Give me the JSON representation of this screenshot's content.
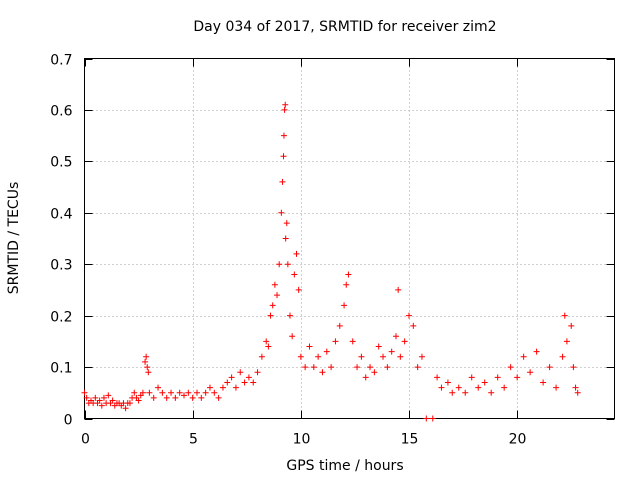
{
  "chart_data": {
    "type": "scatter",
    "title": "Day 034 of 2017, SRMTID for receiver zim2",
    "xlabel": "GPS time / hours",
    "ylabel": "SRMTID / TECUs",
    "xlim": [
      0,
      24.5
    ],
    "ylim": [
      0,
      0.7
    ],
    "xticks": [
      0,
      5,
      10,
      15,
      20
    ],
    "yticks": [
      0,
      0.1,
      0.2,
      0.3,
      0.4,
      0.5,
      0.6,
      0.7
    ],
    "ytick_labels": [
      "0",
      "0.1",
      "0.2",
      "0.3",
      "0.4",
      "0.5",
      "0.6",
      "0.7"
    ],
    "grid": true,
    "marker": "+",
    "color": "#ff0000",
    "series": [
      {
        "name": "SRMTID",
        "points": [
          [
            0.0,
            0.05
          ],
          [
            0.1,
            0.04
          ],
          [
            0.2,
            0.03
          ],
          [
            0.3,
            0.035
          ],
          [
            0.4,
            0.03
          ],
          [
            0.5,
            0.04
          ],
          [
            0.6,
            0.03
          ],
          [
            0.7,
            0.035
          ],
          [
            0.8,
            0.025
          ],
          [
            0.9,
            0.04
          ],
          [
            1.0,
            0.03
          ],
          [
            1.1,
            0.045
          ],
          [
            1.2,
            0.03
          ],
          [
            1.3,
            0.035
          ],
          [
            1.4,
            0.025
          ],
          [
            1.5,
            0.03
          ],
          [
            1.6,
            0.03
          ],
          [
            1.7,
            0.025
          ],
          [
            1.8,
            0.03
          ],
          [
            1.9,
            0.02
          ],
          [
            2.0,
            0.03
          ],
          [
            2.1,
            0.03
          ],
          [
            2.2,
            0.04
          ],
          [
            2.3,
            0.05
          ],
          [
            2.4,
            0.04
          ],
          [
            2.5,
            0.035
          ],
          [
            2.6,
            0.045
          ],
          [
            2.7,
            0.05
          ],
          [
            2.8,
            0.11
          ],
          [
            2.85,
            0.12
          ],
          [
            2.9,
            0.1
          ],
          [
            2.95,
            0.09
          ],
          [
            3.0,
            0.05
          ],
          [
            3.2,
            0.04
          ],
          [
            3.4,
            0.06
          ],
          [
            3.6,
            0.05
          ],
          [
            3.8,
            0.04
          ],
          [
            4.0,
            0.05
          ],
          [
            4.2,
            0.04
          ],
          [
            4.4,
            0.05
          ],
          [
            4.6,
            0.045
          ],
          [
            4.8,
            0.05
          ],
          [
            5.0,
            0.04
          ],
          [
            5.2,
            0.05
          ],
          [
            5.4,
            0.04
          ],
          [
            5.6,
            0.05
          ],
          [
            5.8,
            0.06
          ],
          [
            6.0,
            0.05
          ],
          [
            6.2,
            0.04
          ],
          [
            6.4,
            0.06
          ],
          [
            6.6,
            0.07
          ],
          [
            6.8,
            0.08
          ],
          [
            7.0,
            0.06
          ],
          [
            7.2,
            0.09
          ],
          [
            7.4,
            0.07
          ],
          [
            7.6,
            0.08
          ],
          [
            7.8,
            0.07
          ],
          [
            8.0,
            0.09
          ],
          [
            8.2,
            0.12
          ],
          [
            8.4,
            0.15
          ],
          [
            8.5,
            0.14
          ],
          [
            8.6,
            0.2
          ],
          [
            8.7,
            0.22
          ],
          [
            8.8,
            0.26
          ],
          [
            8.9,
            0.24
          ],
          [
            9.0,
            0.3
          ],
          [
            9.1,
            0.4
          ],
          [
            9.15,
            0.46
          ],
          [
            9.2,
            0.51
          ],
          [
            9.22,
            0.55
          ],
          [
            9.25,
            0.6
          ],
          [
            9.28,
            0.61
          ],
          [
            9.3,
            0.35
          ],
          [
            9.35,
            0.38
          ],
          [
            9.4,
            0.3
          ],
          [
            9.5,
            0.2
          ],
          [
            9.6,
            0.16
          ],
          [
            9.7,
            0.28
          ],
          [
            9.8,
            0.32
          ],
          [
            9.9,
            0.25
          ],
          [
            10.0,
            0.12
          ],
          [
            10.2,
            0.1
          ],
          [
            10.4,
            0.14
          ],
          [
            10.6,
            0.1
          ],
          [
            10.8,
            0.12
          ],
          [
            11.0,
            0.09
          ],
          [
            11.2,
            0.13
          ],
          [
            11.4,
            0.1
          ],
          [
            11.6,
            0.15
          ],
          [
            11.8,
            0.18
          ],
          [
            12.0,
            0.22
          ],
          [
            12.1,
            0.26
          ],
          [
            12.2,
            0.28
          ],
          [
            12.4,
            0.15
          ],
          [
            12.6,
            0.1
          ],
          [
            12.8,
            0.12
          ],
          [
            13.0,
            0.08
          ],
          [
            13.2,
            0.1
          ],
          [
            13.4,
            0.09
          ],
          [
            13.6,
            0.14
          ],
          [
            13.8,
            0.12
          ],
          [
            14.0,
            0.1
          ],
          [
            14.2,
            0.13
          ],
          [
            14.4,
            0.16
          ],
          [
            14.5,
            0.25
          ],
          [
            14.6,
            0.12
          ],
          [
            14.8,
            0.15
          ],
          [
            15.0,
            0.2
          ],
          [
            15.2,
            0.18
          ],
          [
            15.4,
            0.1
          ],
          [
            15.6,
            0.12
          ],
          [
            15.8,
            0.0
          ],
          [
            16.1,
            0.0
          ],
          [
            16.3,
            0.08
          ],
          [
            16.5,
            0.06
          ],
          [
            16.8,
            0.07
          ],
          [
            17.0,
            0.05
          ],
          [
            17.3,
            0.06
          ],
          [
            17.6,
            0.05
          ],
          [
            17.9,
            0.08
          ],
          [
            18.2,
            0.06
          ],
          [
            18.5,
            0.07
          ],
          [
            18.8,
            0.05
          ],
          [
            19.1,
            0.08
          ],
          [
            19.4,
            0.06
          ],
          [
            19.7,
            0.1
          ],
          [
            20.0,
            0.08
          ],
          [
            20.3,
            0.12
          ],
          [
            20.6,
            0.09
          ],
          [
            20.9,
            0.13
          ],
          [
            21.2,
            0.07
          ],
          [
            21.5,
            0.1
          ],
          [
            21.8,
            0.06
          ],
          [
            22.1,
            0.12
          ],
          [
            22.2,
            0.2
          ],
          [
            22.3,
            0.15
          ],
          [
            22.5,
            0.18
          ],
          [
            22.6,
            0.1
          ],
          [
            22.7,
            0.06
          ],
          [
            22.8,
            0.05
          ]
        ]
      }
    ]
  }
}
